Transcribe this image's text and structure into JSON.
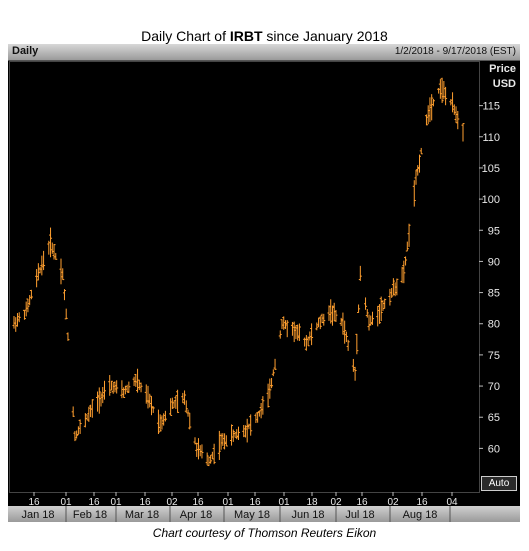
{
  "header": {
    "title_prefix": "Daily Chart of ",
    "title_ticker": "IRBT",
    "title_suffix": " since January 2018"
  },
  "toolbar": {
    "label": "Daily",
    "date_range": "1/2/2018 - 9/17/2018 (EST)",
    "auto_label": "Auto"
  },
  "caption": "Chart courtesy of Thomson Reuters Eikon",
  "colors": {
    "background": "#000000",
    "bars": "#ff9f2f",
    "grid": "#444444"
  },
  "chart_data": {
    "type": "line",
    "style": "ohlc-bars",
    "title": "Daily Chart of IRBT since January 2018",
    "ylabel_line1": "Price",
    "ylabel_line2": "USD",
    "ylim": [
      53,
      122
    ],
    "yticks": [
      60,
      65,
      70,
      75,
      80,
      85,
      90,
      95,
      100,
      105,
      110,
      115
    ],
    "grid": false,
    "x_day_ticks": [
      "16",
      "01",
      "16",
      "01",
      "16",
      "02",
      "16",
      "01",
      "16",
      "01",
      "18",
      "02",
      "16",
      "02",
      "16",
      "04"
    ],
    "x_month_labels": [
      "Jan 18",
      "Feb 18",
      "Mar 18",
      "Apr 18",
      "May 18",
      "Jun 18",
      "Jul 18",
      "Aug 18"
    ],
    "x": [
      "2018-01-02",
      "2018-01-09",
      "2018-01-16",
      "2018-01-23",
      "2018-01-30",
      "2018-02-02",
      "2018-02-06",
      "2018-02-13",
      "2018-02-20",
      "2018-02-27",
      "2018-03-06",
      "2018-03-13",
      "2018-03-20",
      "2018-03-27",
      "2018-04-03",
      "2018-04-10",
      "2018-04-17",
      "2018-04-24",
      "2018-05-01",
      "2018-05-08",
      "2018-05-15",
      "2018-05-22",
      "2018-05-29",
      "2018-06-05",
      "2018-06-12",
      "2018-06-19",
      "2018-06-26",
      "2018-07-03",
      "2018-07-10",
      "2018-07-17",
      "2018-07-20",
      "2018-07-25",
      "2018-07-31",
      "2018-08-07",
      "2018-08-14",
      "2018-08-21",
      "2018-08-28",
      "2018-09-04",
      "2018-09-11",
      "2018-09-17"
    ],
    "series": [
      {
        "values": [
          80,
          82,
          88,
          93,
          88,
          78,
          62,
          65,
          68,
          70,
          69,
          71,
          68,
          64,
          67,
          68,
          60,
          58,
          61,
          62,
          63,
          65,
          69,
          80,
          79,
          77,
          80,
          82,
          80,
          72,
          88,
          80,
          82,
          85,
          88,
          103,
          114,
          118,
          115,
          111
        ]
      }
    ]
  }
}
